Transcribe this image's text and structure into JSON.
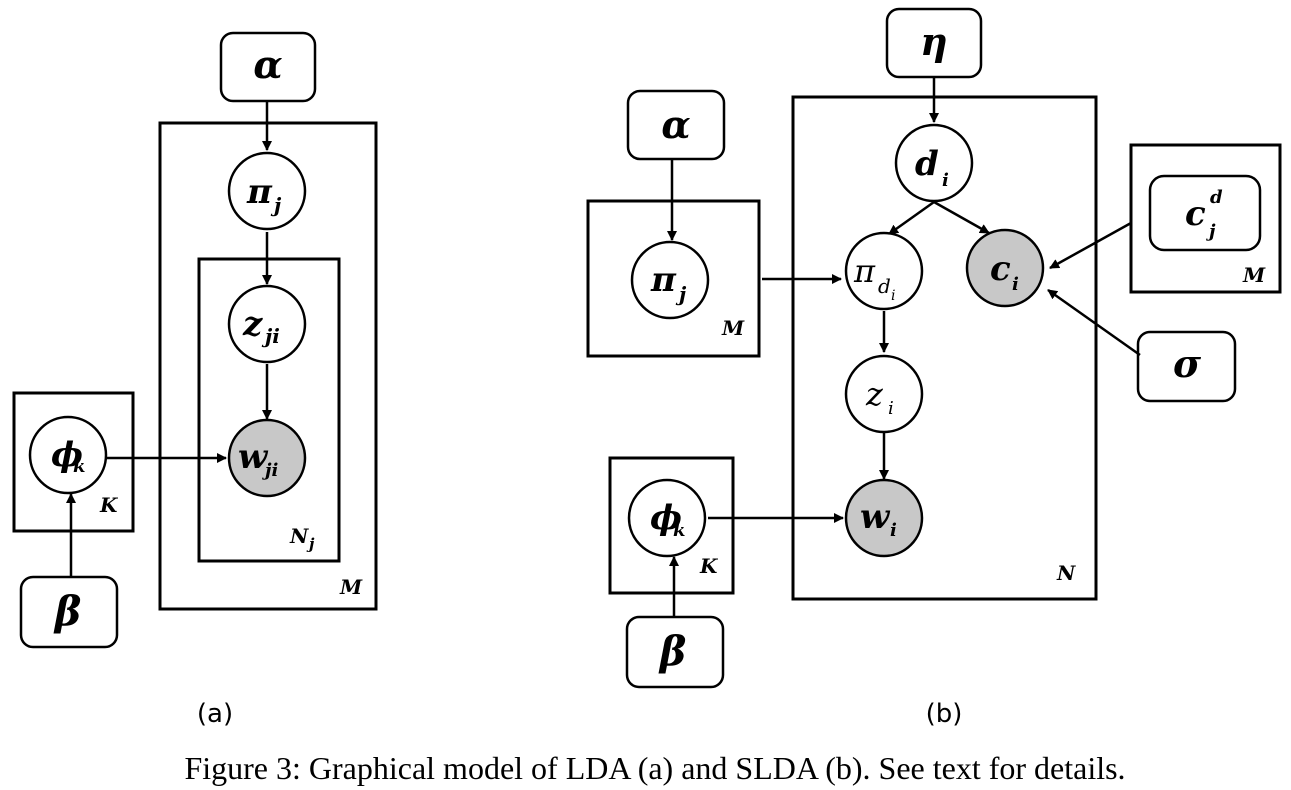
{
  "diagram_a": {
    "params": {
      "alpha": "α",
      "beta": "β"
    },
    "nodes": {
      "pi": {
        "sym": "π",
        "sub": "j"
      },
      "z": {
        "sym": "z",
        "sub": "ji"
      },
      "w": {
        "sym": "w",
        "sub": "ji"
      },
      "phi": {
        "sym": "ϕ",
        "sub": "k"
      }
    },
    "plates": {
      "K": "K",
      "Nj": "N",
      "Nj_sub": "j",
      "M": "M"
    },
    "panel_label": "(a)"
  },
  "diagram_b": {
    "params": {
      "alpha": "α",
      "beta": "β",
      "eta": "η",
      "sigma": "σ"
    },
    "nodes": {
      "d": {
        "sym": "d",
        "sub": "i"
      },
      "pi_j": {
        "sym": "π",
        "sub": "j"
      },
      "pi_d": {
        "sym": "π",
        "sub": "d",
        "subsub": "i"
      },
      "c": {
        "sym": "c",
        "sub": "i"
      },
      "z": {
        "sym": "z",
        "sub": "i"
      },
      "w": {
        "sym": "w",
        "sub": "i"
      },
      "phi": {
        "sym": "ϕ",
        "sub": "k"
      },
      "cjd": {
        "sym": "c",
        "sup": "d",
        "sub": "j"
      }
    },
    "plates": {
      "M_left": "M",
      "N": "N",
      "K": "K",
      "M_right": "M"
    },
    "panel_label": "(b)"
  },
  "caption": "Figure 3: Graphical model of LDA (a) and SLDA (b). See text for details."
}
